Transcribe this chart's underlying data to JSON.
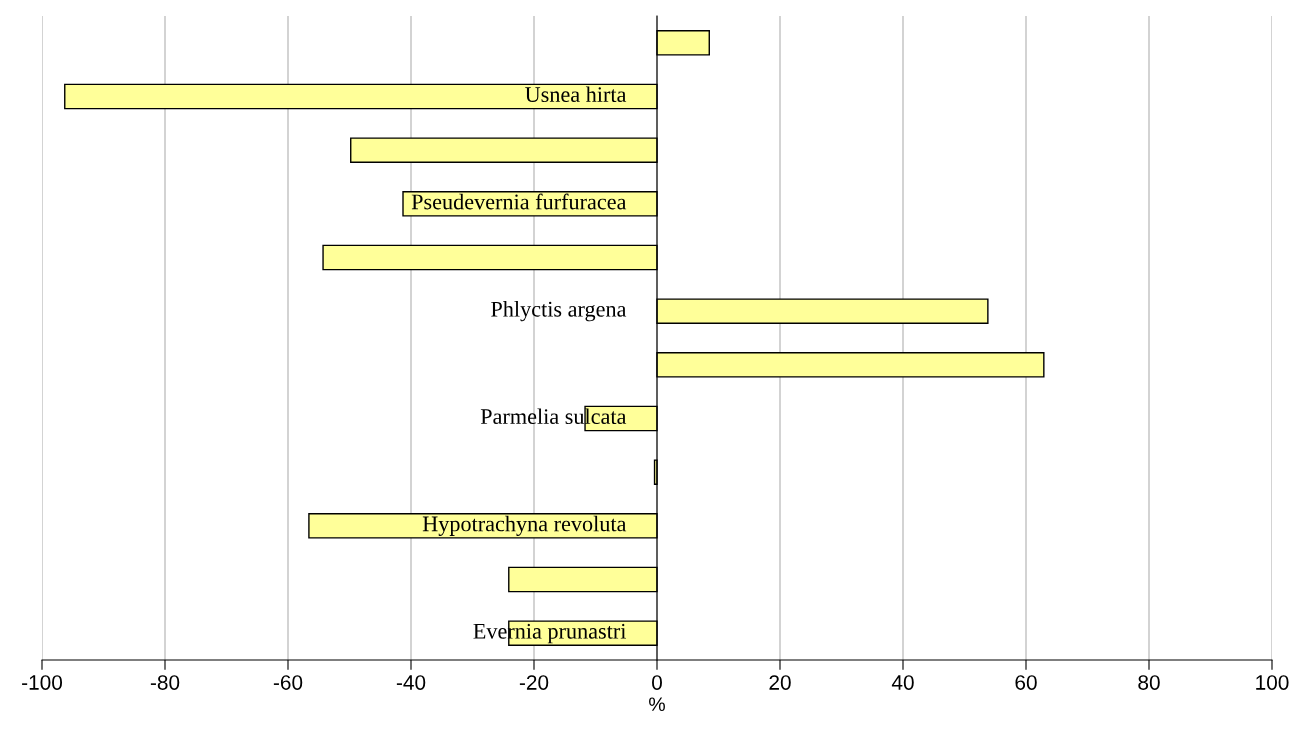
{
  "chart_data": {
    "type": "bar",
    "orientation": "horizontal",
    "xlabel": "%",
    "categories": [
      null,
      "Usnea hirta",
      null,
      "Pseudevernia furfuracea",
      null,
      "Phlyctis argena",
      null,
      "Parmelia sulcata",
      null,
      "Hypotrachyna revoluta",
      null,
      "Evernia prunastri"
    ],
    "values": [
      8.5,
      -96.3,
      -49.8,
      -41.3,
      -54.3,
      53.8,
      62.9,
      -11.7,
      -0.4,
      -56.6,
      -24.1,
      -24.1
    ],
    "color": "#ffff99",
    "xlim": [
      -100,
      100
    ],
    "xticks": [
      -100,
      -80,
      -60,
      -40,
      -20,
      0,
      20,
      40,
      60,
      80,
      100
    ],
    "grid": "x",
    "legend": false
  }
}
